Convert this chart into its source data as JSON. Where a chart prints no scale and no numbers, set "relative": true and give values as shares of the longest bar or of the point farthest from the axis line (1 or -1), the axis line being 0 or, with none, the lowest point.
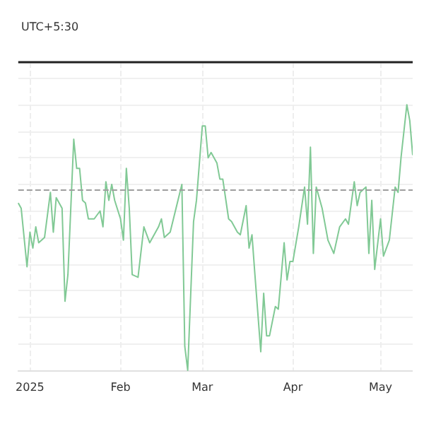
{
  "chart_data": {
    "type": "line",
    "relative": true,
    "color": "#81c995",
    "annotations": [
      "UTC+5:30"
    ],
    "xlim": [
      "2024-12-28",
      "2025-05-12"
    ],
    "xticks": [
      {
        "value": "2025-01-01",
        "label": "2025"
      },
      {
        "value": "2025-02-01",
        "label": "Feb"
      },
      {
        "value": "2025-03-01",
        "label": "Mar"
      },
      {
        "value": "2025-04-01",
        "label": "Apr"
      },
      {
        "value": "2025-05-01",
        "label": "May"
      }
    ],
    "x": [
      "2024-12-28",
      "2024-12-29",
      "2024-12-31",
      "2025-01-01",
      "2025-01-02",
      "2025-01-03",
      "2025-01-04",
      "2025-01-06",
      "2025-01-08",
      "2025-01-09",
      "2025-01-10",
      "2025-01-12",
      "2025-01-13",
      "2025-01-14",
      "2025-01-16",
      "2025-01-17",
      "2025-01-18",
      "2025-01-19",
      "2025-01-20",
      "2025-01-21",
      "2025-01-23",
      "2025-01-25",
      "2025-01-26",
      "2025-01-27",
      "2025-01-28",
      "2025-01-29",
      "2025-01-30",
      "2025-02-01",
      "2025-02-02",
      "2025-02-03",
      "2025-02-04",
      "2025-02-05",
      "2025-02-07",
      "2025-02-09",
      "2025-02-11",
      "2025-02-13",
      "2025-02-14",
      "2025-02-15",
      "2025-02-16",
      "2025-02-18",
      "2025-02-20",
      "2025-02-22",
      "2025-02-23",
      "2025-02-24",
      "2025-02-26",
      "2025-02-27",
      "2025-03-01",
      "2025-03-02",
      "2025-03-03",
      "2025-03-04",
      "2025-03-06",
      "2025-03-07",
      "2025-03-08",
      "2025-03-10",
      "2025-03-11",
      "2025-03-13",
      "2025-03-14",
      "2025-03-16",
      "2025-03-17",
      "2025-03-18",
      "2025-03-19",
      "2025-03-21",
      "2025-03-22",
      "2025-03-23",
      "2025-03-24",
      "2025-03-26",
      "2025-03-27",
      "2025-03-29",
      "2025-03-30",
      "2025-03-31",
      "2025-04-01",
      "2025-04-03",
      "2025-04-05",
      "2025-04-06",
      "2025-04-07",
      "2025-04-08",
      "2025-04-09",
      "2025-04-11",
      "2025-04-13",
      "2025-04-15",
      "2025-04-17",
      "2025-04-19",
      "2025-04-20",
      "2025-04-22",
      "2025-04-23",
      "2025-04-24",
      "2025-04-26",
      "2025-04-27",
      "2025-04-28",
      "2025-04-29",
      "2025-05-01",
      "2025-05-02",
      "2025-05-04",
      "2025-05-05",
      "2025-05-06",
      "2025-05-07",
      "2025-05-08",
      "2025-05-10",
      "2025-05-11",
      "2025-05-12"
    ],
    "values": [
      0.63,
      0.61,
      0.39,
      0.52,
      0.46,
      0.54,
      0.48,
      0.5,
      0.67,
      0.52,
      0.65,
      0.61,
      0.26,
      0.36,
      0.87,
      0.76,
      0.76,
      0.64,
      0.63,
      0.57,
      0.57,
      0.6,
      0.54,
      0.71,
      0.64,
      0.7,
      0.64,
      0.57,
      0.49,
      0.76,
      0.61,
      0.36,
      0.35,
      0.54,
      0.48,
      0.52,
      0.54,
      0.57,
      0.5,
      0.52,
      0.61,
      0.7,
      0.09,
      0.0,
      0.56,
      0.64,
      0.92,
      0.92,
      0.8,
      0.82,
      0.78,
      0.72,
      0.72,
      0.57,
      0.56,
      0.52,
      0.51,
      0.62,
      0.46,
      0.51,
      0.36,
      0.07,
      0.29,
      0.13,
      0.13,
      0.24,
      0.23,
      0.48,
      0.34,
      0.41,
      0.41,
      0.54,
      0.69,
      0.55,
      0.84,
      0.44,
      0.69,
      0.61,
      0.49,
      0.44,
      0.54,
      0.57,
      0.55,
      0.71,
      0.62,
      0.67,
      0.69,
      0.44,
      0.64,
      0.38,
      0.57,
      0.43,
      0.49,
      0.59,
      0.69,
      0.67,
      0.8,
      1.0,
      0.94,
      0.81
    ],
    "ref_lines": [
      {
        "axis": "y",
        "value": 1.16,
        "color": "#222222",
        "line_style": "solid"
      },
      {
        "axis": "y",
        "value": 0.68,
        "color": "#9e9e9e",
        "line_style": "dashed"
      }
    ],
    "grid": true,
    "marker": "none",
    "line_style": "solid"
  }
}
